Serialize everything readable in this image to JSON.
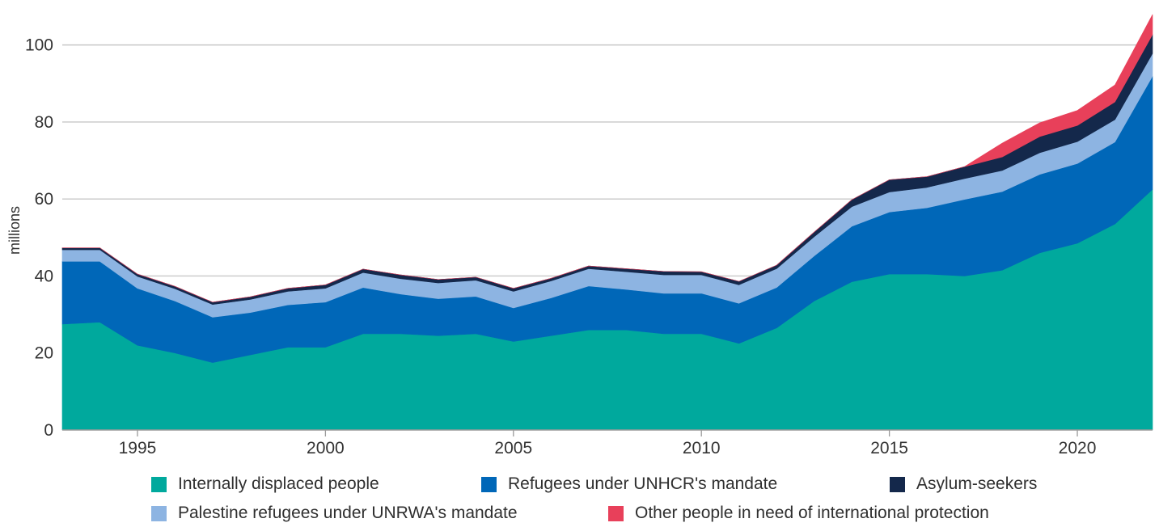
{
  "chart_data": {
    "type": "area",
    "stacked": true,
    "title": "",
    "xlabel": "",
    "ylabel": "millions",
    "xlim": [
      1993,
      2022
    ],
    "ylim": [
      0,
      110
    ],
    "grid": true,
    "x": [
      1993,
      1994,
      1995,
      1996,
      1997,
      1998,
      1999,
      2000,
      2001,
      2002,
      2003,
      2004,
      2005,
      2006,
      2007,
      2008,
      2009,
      2010,
      2011,
      2012,
      2013,
      2014,
      2015,
      2016,
      2017,
      2018,
      2019,
      2020,
      2021,
      2022
    ],
    "x_ticks": [
      1995,
      2000,
      2005,
      2010,
      2015,
      2020
    ],
    "y_ticks": [
      0,
      20,
      40,
      60,
      80,
      100
    ],
    "legend_position": "bottom",
    "series": [
      {
        "name": "Internally displaced people",
        "color": "#00a99d",
        "values": [
          27.5,
          28.0,
          22.0,
          20.0,
          17.5,
          19.5,
          21.5,
          21.5,
          25.0,
          25.0,
          24.5,
          25.0,
          23.0,
          24.5,
          26.0,
          26.0,
          25.0,
          25.0,
          22.5,
          26.5,
          33.5,
          38.5,
          40.5,
          40.5,
          40.0,
          41.5,
          46.0,
          48.5,
          53.5,
          62.5
        ]
      },
      {
        "name": "Refugees under UNHCR's mandate",
        "color": "#0067b8",
        "values": [
          16.3,
          15.8,
          14.8,
          13.5,
          11.8,
          11.0,
          11.0,
          11.7,
          12.0,
          10.3,
          9.6,
          9.7,
          8.7,
          9.8,
          11.4,
          10.5,
          10.5,
          10.5,
          10.4,
          10.5,
          11.7,
          14.4,
          16.1,
          17.2,
          19.9,
          20.4,
          20.4,
          20.7,
          21.3,
          29.4
        ]
      },
      {
        "name": "Palestine refugees under UNRWA's mandate",
        "color": "#8db4e2",
        "values": [
          3.0,
          3.0,
          3.1,
          3.2,
          3.3,
          3.4,
          3.5,
          3.6,
          3.9,
          4.0,
          4.1,
          4.2,
          4.3,
          4.4,
          4.5,
          4.6,
          4.8,
          4.8,
          4.8,
          4.9,
          5.0,
          5.1,
          5.2,
          5.3,
          5.4,
          5.5,
          5.6,
          5.7,
          5.8,
          5.9
        ]
      },
      {
        "name": "Asylum-seekers",
        "color": "#14284b",
        "values": [
          0.5,
          0.5,
          0.6,
          0.6,
          0.6,
          0.7,
          0.8,
          0.9,
          0.9,
          1.0,
          0.9,
          0.8,
          0.8,
          0.7,
          0.7,
          0.8,
          0.9,
          0.8,
          0.9,
          0.9,
          1.2,
          1.8,
          3.2,
          2.8,
          3.1,
          3.5,
          4.2,
          4.2,
          4.6,
          4.9
        ]
      },
      {
        "name": "Other people in need of international protection",
        "color": "#e8405a",
        "values": [
          0,
          0,
          0,
          0,
          0,
          0,
          0,
          0,
          0,
          0,
          0,
          0,
          0,
          0,
          0,
          0,
          0,
          0,
          0,
          0,
          0,
          0,
          0,
          0,
          0,
          3.6,
          3.6,
          3.9,
          4.4,
          5.2
        ]
      }
    ]
  }
}
